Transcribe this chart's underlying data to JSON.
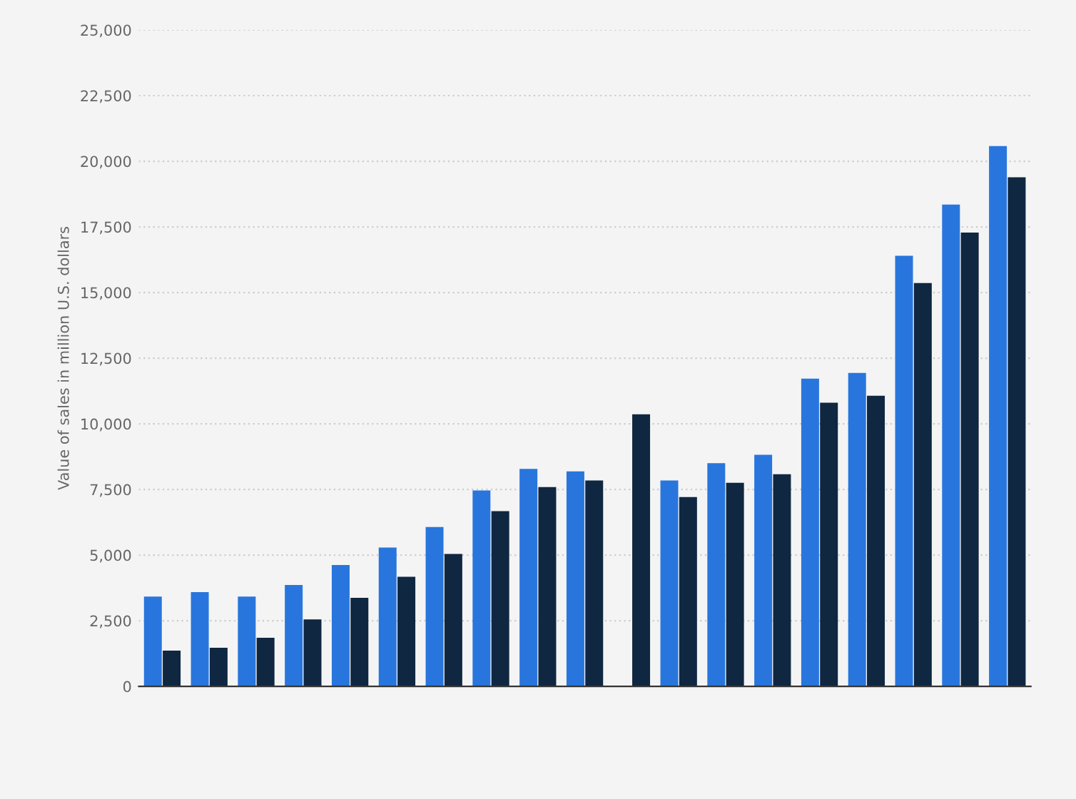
{
  "chart_data": {
    "type": "bar",
    "ylabel": "Value of sales in million U.S. dollars",
    "categories": [
      null,
      null,
      null,
      null,
      null,
      null,
      null,
      null,
      null,
      null,
      null,
      null,
      null,
      null,
      null,
      null,
      null,
      null,
      null
    ],
    "series": [
      {
        "color": "#2876dd",
        "values": [
          3420,
          3590,
          3420,
          3860,
          4620,
          5290,
          6070,
          7460,
          8280,
          8190,
          null,
          7840,
          8500,
          8820,
          11720,
          11940,
          16400,
          18350,
          20580
        ]
      },
      {
        "color": "#0f2741",
        "values": [
          1360,
          1470,
          1850,
          2550,
          3370,
          4170,
          5040,
          6670,
          7590,
          7840,
          10360,
          7210,
          7750,
          8080,
          10800,
          11070,
          15360,
          17280,
          19390
        ]
      }
    ],
    "ylim": [
      0,
      25000
    ],
    "yticks": [
      {
        "value": 0,
        "label": "0"
      },
      {
        "value": 2500,
        "label": "2,500"
      },
      {
        "value": 5000,
        "label": "5,000"
      },
      {
        "value": 7500,
        "label": "7,500"
      },
      {
        "value": 10000,
        "label": "10,000"
      },
      {
        "value": 12500,
        "label": "12,500"
      },
      {
        "value": 15000,
        "label": "15,000"
      },
      {
        "value": 17500,
        "label": "17,500"
      },
      {
        "value": 20000,
        "label": "20,000"
      },
      {
        "value": 22500,
        "label": "22,500"
      },
      {
        "value": 25000,
        "label": "25,000"
      }
    ],
    "grid": "y",
    "tick_labels": "y"
  }
}
